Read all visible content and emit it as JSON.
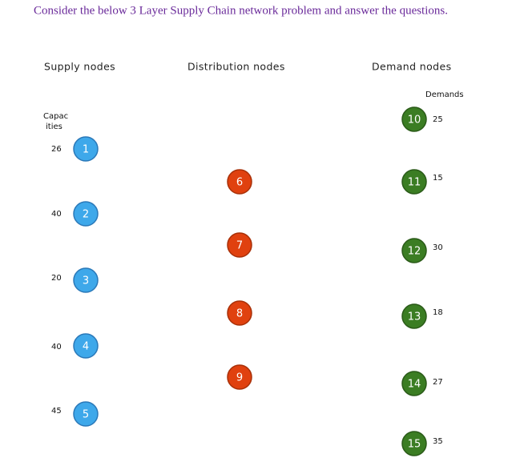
{
  "header": {
    "title": "Consider the below 3 Layer Supply Chain network problem and answer the questions."
  },
  "columns": {
    "supply": "Supply nodes",
    "distribution": "Distribution nodes",
    "demand": "Demand nodes"
  },
  "capacities_label": [
    "Capac",
    "ities"
  ],
  "demands_label": "Demands",
  "supply_nodes": [
    {
      "label": "1",
      "capacity": 26
    },
    {
      "label": "2",
      "capacity": 40
    },
    {
      "label": "3",
      "capacity": 20
    },
    {
      "label": "4",
      "capacity": 40
    },
    {
      "label": "5",
      "capacity": 45
    }
  ],
  "distribution_nodes": [
    {
      "label": "6"
    },
    {
      "label": "7"
    },
    {
      "label": "8"
    },
    {
      "label": "9"
    }
  ],
  "demand_nodes": [
    {
      "label": "10",
      "demand": 25
    },
    {
      "label": "11",
      "demand": 15
    },
    {
      "label": "12",
      "demand": 30
    },
    {
      "label": "13",
      "demand": 18
    },
    {
      "label": "14",
      "demand": 27
    },
    {
      "label": "15",
      "demand": 35
    }
  ]
}
